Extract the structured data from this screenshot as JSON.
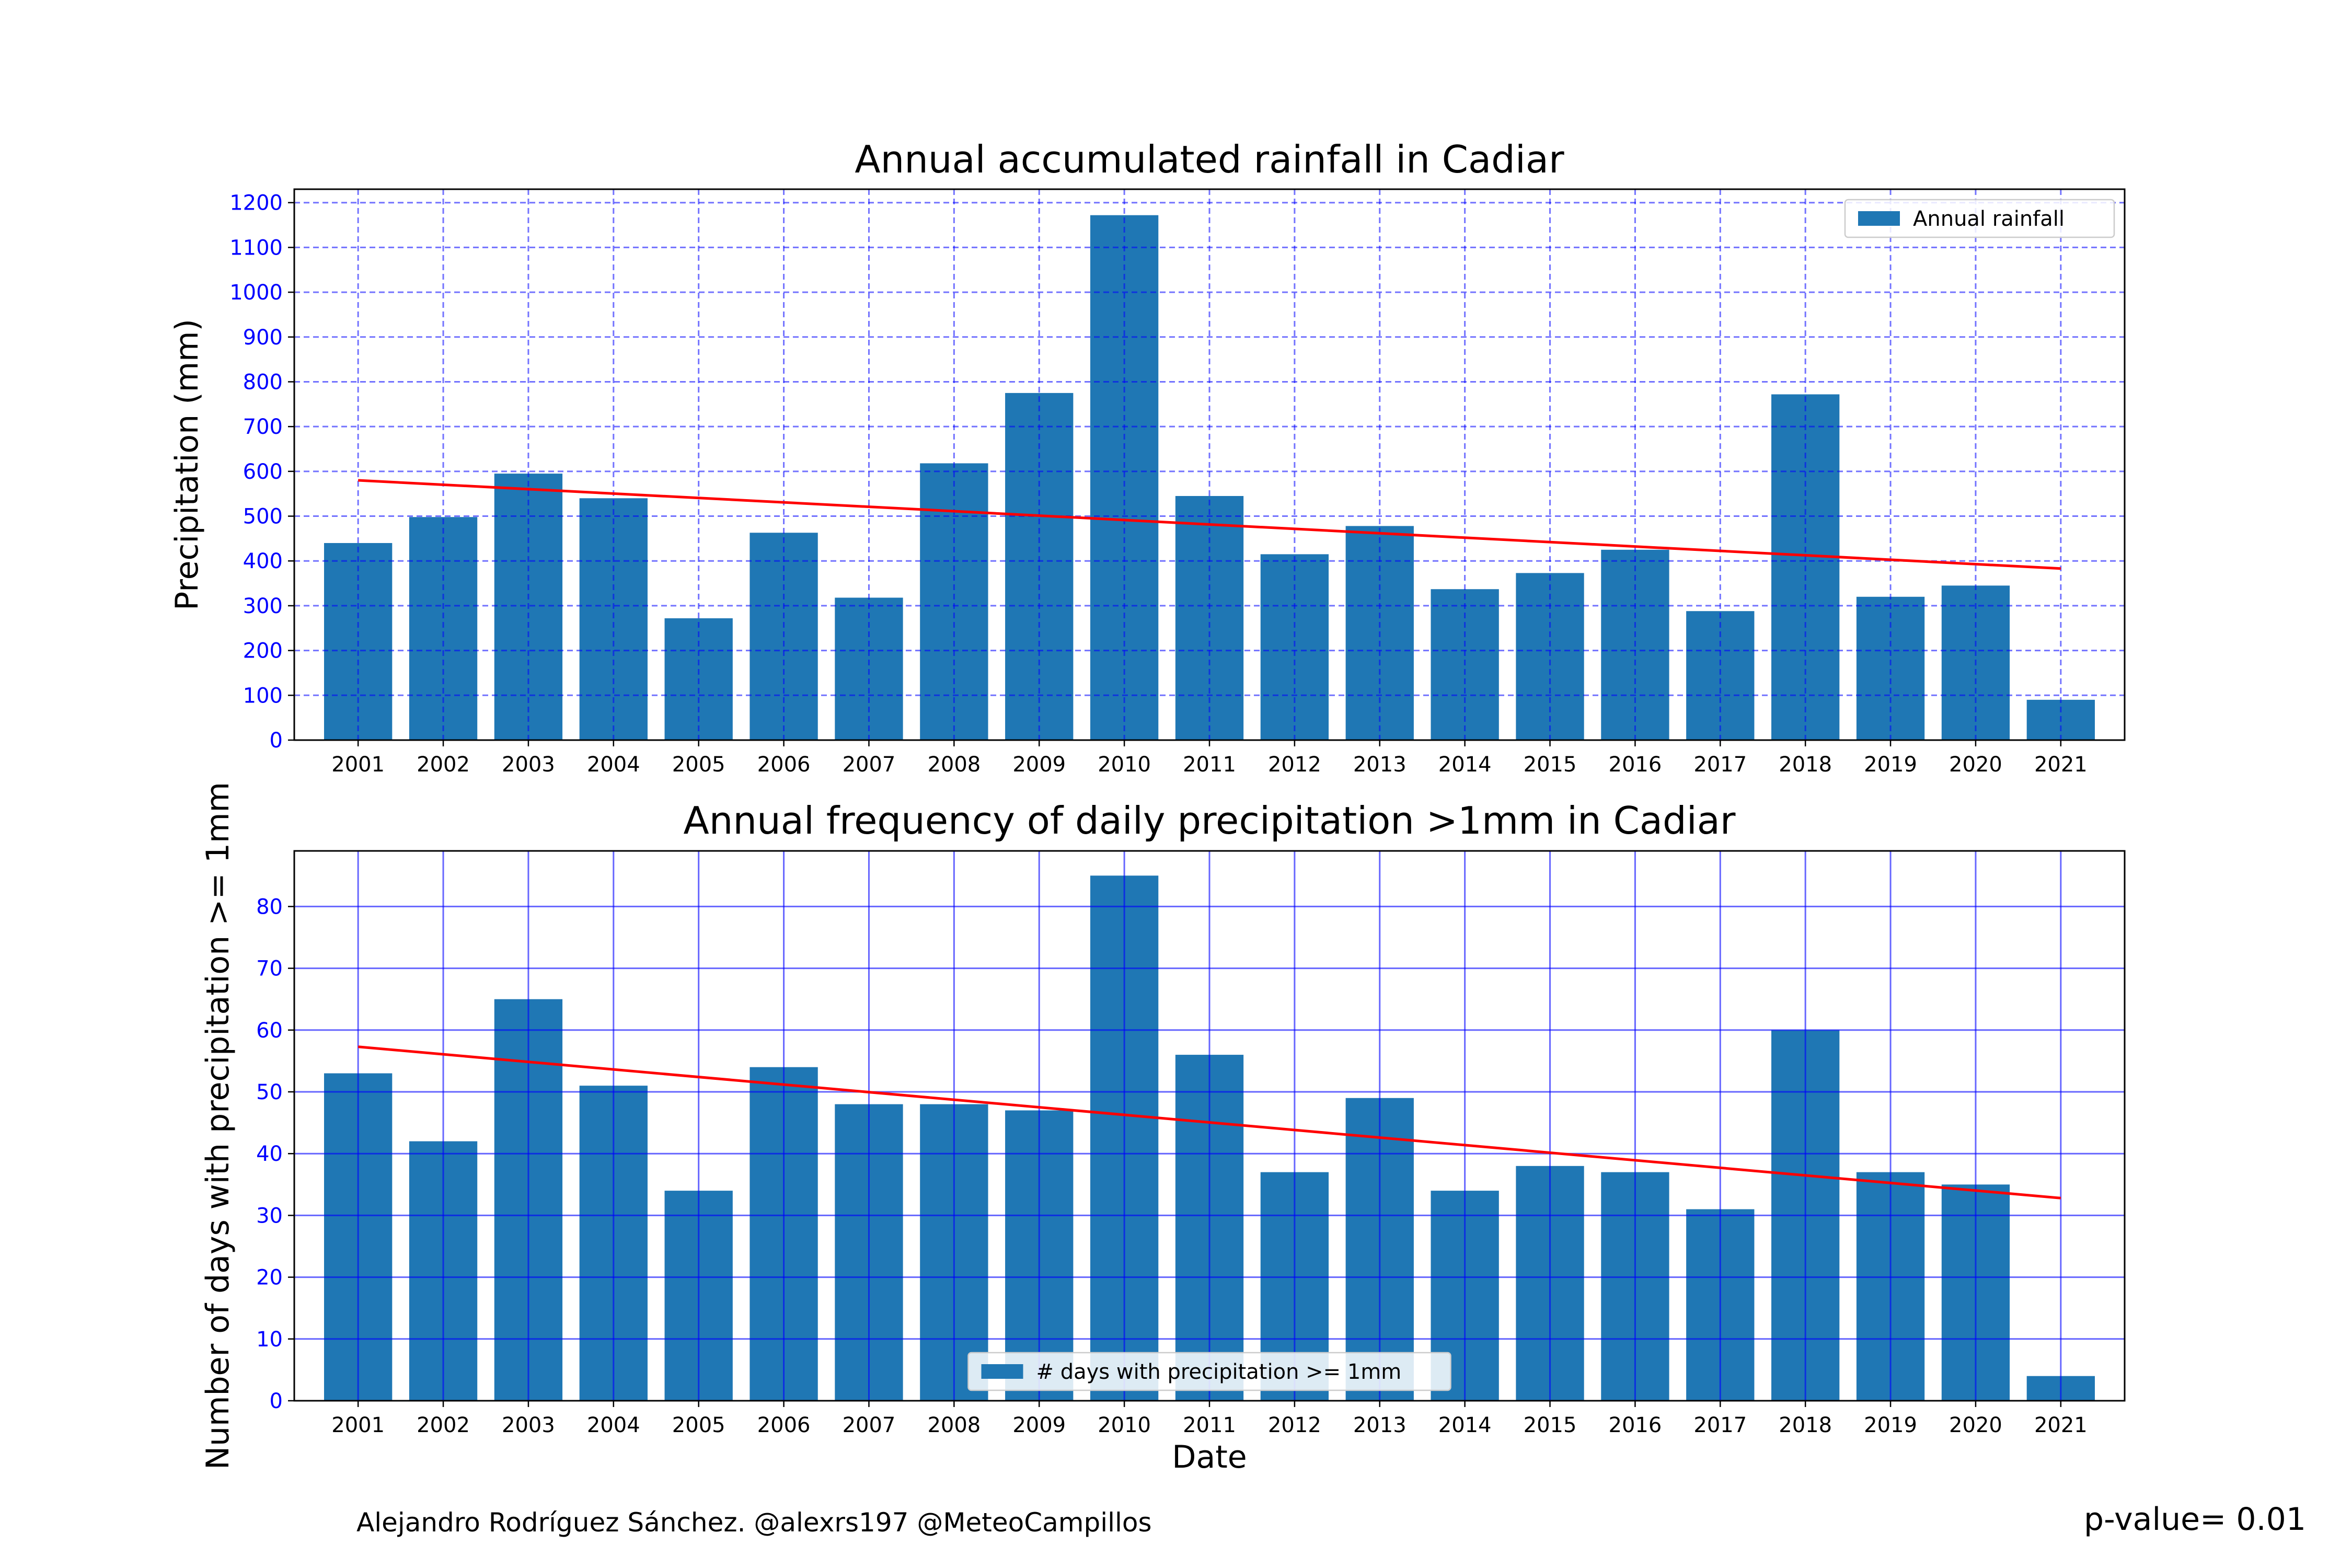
{
  "chart_data": [
    {
      "type": "bar",
      "title": "Annual accumulated rainfall in Cadiar",
      "xlabel": "",
      "ylabel": "Precipitation (mm)",
      "categories": [
        "2001",
        "2002",
        "2003",
        "2004",
        "2005",
        "2006",
        "2007",
        "2008",
        "2009",
        "2010",
        "2011",
        "2012",
        "2013",
        "2014",
        "2015",
        "2016",
        "2017",
        "2018",
        "2019",
        "2020",
        "2021"
      ],
      "series": [
        {
          "name": "Annual rainfall",
          "values": [
            440,
            498,
            595,
            540,
            272,
            463,
            318,
            618,
            775,
            1172,
            545,
            415,
            478,
            337,
            373,
            425,
            288,
            772,
            320,
            345,
            90
          ]
        }
      ],
      "trend_line": {
        "start": 580,
        "end": 383,
        "color": "#ff0000"
      },
      "ylim": [
        0,
        1230
      ],
      "yticks": [
        0,
        100,
        200,
        300,
        400,
        500,
        600,
        700,
        800,
        900,
        1000,
        1100,
        1200
      ],
      "grid": "dashed",
      "grid_color": "#0000ff",
      "tick_label_color": "#0000ff",
      "bar_color": "#1f77b4",
      "legend_position": "top-right"
    },
    {
      "type": "bar",
      "title": "Annual frequency of daily precipitation >1mm in Cadiar",
      "xlabel": "Date",
      "ylabel": "Number of days with precipitation >= 1mm",
      "categories": [
        "2001",
        "2002",
        "2003",
        "2004",
        "2005",
        "2006",
        "2007",
        "2008",
        "2009",
        "2010",
        "2011",
        "2012",
        "2013",
        "2014",
        "2015",
        "2016",
        "2017",
        "2018",
        "2019",
        "2020",
        "2021"
      ],
      "series": [
        {
          "name": "# days with precipitation >= 1mm",
          "values": [
            53,
            42,
            65,
            51,
            34,
            54,
            48,
            48,
            47,
            85,
            56,
            37,
            49,
            34,
            38,
            37,
            31,
            60,
            37,
            35,
            4
          ]
        }
      ],
      "trend_line": {
        "start": 57.3,
        "end": 32.8,
        "color": "#ff0000"
      },
      "ylim": [
        0,
        89
      ],
      "yticks": [
        0,
        10,
        20,
        30,
        40,
        50,
        60,
        70,
        80
      ],
      "grid": "solid",
      "grid_color": "#0000ff",
      "tick_label_color": "#0000ff",
      "bar_color": "#1f77b4",
      "legend_position": "bottom-center"
    }
  ],
  "footer": {
    "credit": "Alejandro Rodríguez Sánchez. @alexrs197 @MeteoCampillos",
    "pvalue": "p-value= 0.01"
  }
}
